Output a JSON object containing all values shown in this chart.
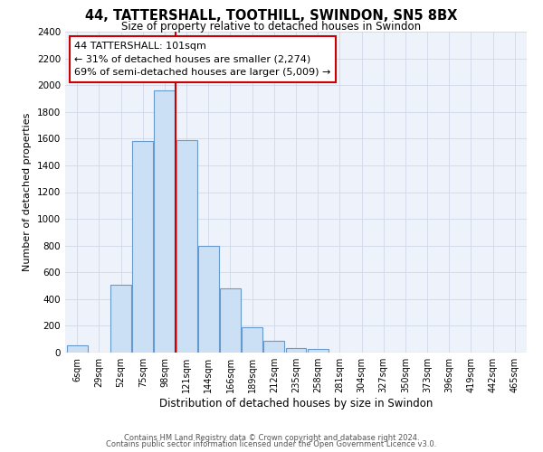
{
  "title": "44, TATTERSHALL, TOOTHILL, SWINDON, SN5 8BX",
  "subtitle": "Size of property relative to detached houses in Swindon",
  "xlabel": "Distribution of detached houses by size in Swindon",
  "ylabel": "Number of detached properties",
  "bar_labels": [
    "6sqm",
    "29sqm",
    "52sqm",
    "75sqm",
    "98sqm",
    "121sqm",
    "144sqm",
    "166sqm",
    "189sqm",
    "212sqm",
    "235sqm",
    "258sqm",
    "281sqm",
    "304sqm",
    "327sqm",
    "350sqm",
    "373sqm",
    "396sqm",
    "419sqm",
    "442sqm",
    "465sqm"
  ],
  "bar_values": [
    55,
    0,
    505,
    1580,
    1960,
    1590,
    800,
    480,
    190,
    90,
    35,
    30,
    0,
    0,
    0,
    0,
    0,
    0,
    0,
    0,
    0
  ],
  "bar_color": "#cce0f5",
  "bar_edge_color": "#6699cc",
  "vline_color": "#cc0000",
  "ylim": [
    0,
    2400
  ],
  "yticks": [
    0,
    200,
    400,
    600,
    800,
    1000,
    1200,
    1400,
    1600,
    1800,
    2000,
    2200,
    2400
  ],
  "annotation_title": "44 TATTERSHALL: 101sqm",
  "annotation_line1": "← 31% of detached houses are smaller (2,274)",
  "annotation_line2": "69% of semi-detached houses are larger (5,009) →",
  "bg_color": "#eef2fa",
  "grid_color": "#d0d8e8",
  "footer_line1": "Contains HM Land Registry data © Crown copyright and database right 2024.",
  "footer_line2": "Contains public sector information licensed under the Open Government Licence v3.0."
}
